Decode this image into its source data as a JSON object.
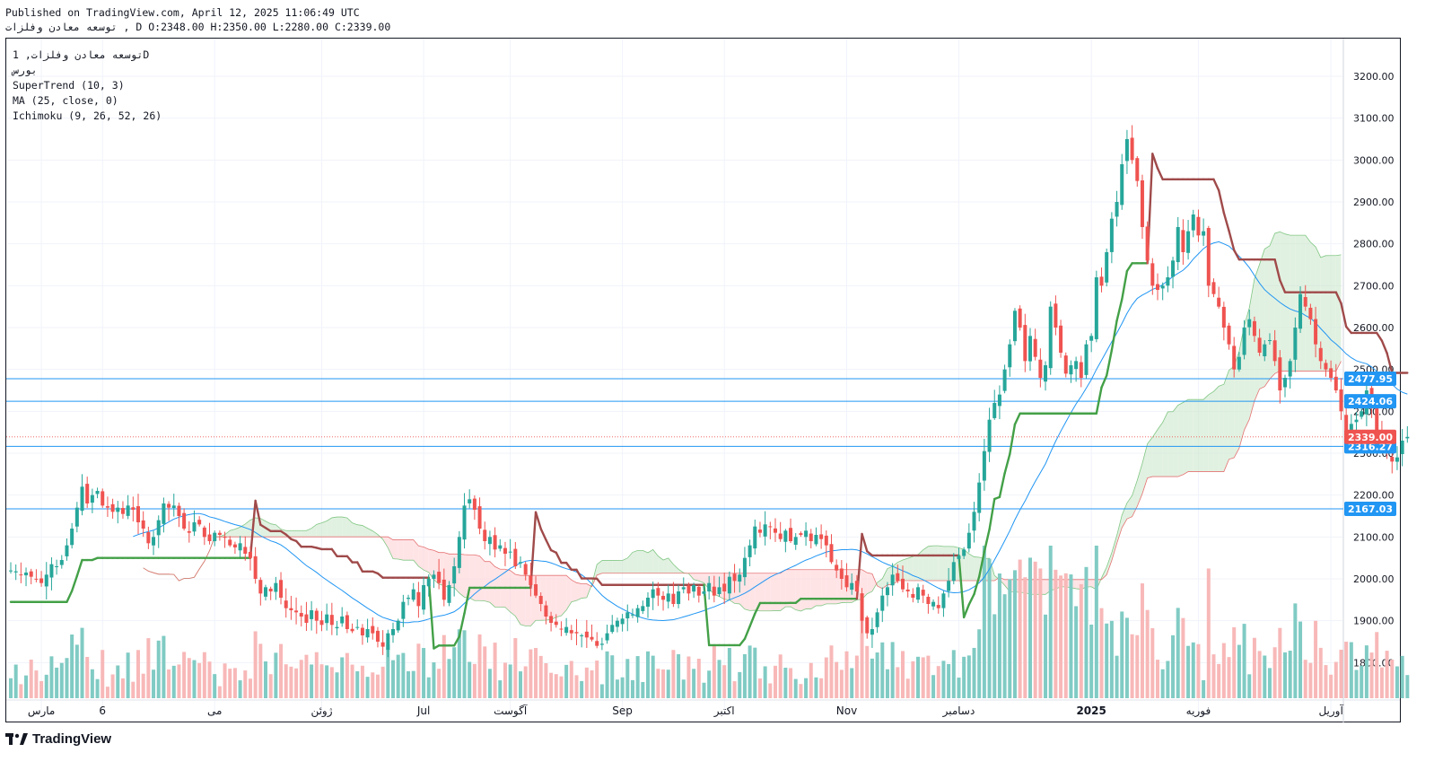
{
  "header": {
    "published": "Published on TradingView.com, April 12, 2025 11:06:49 UTC",
    "ohlc_line": "توسعه معادن وفلزات , D O:2348.00 H:2350.00 L:2280.00 C:2339.00"
  },
  "legend": {
    "symbol": "توسعه معادن وفلزات, 1D",
    "exchange": "بورس",
    "indicator_1": "SuperTrend (10, 3)",
    "indicator_2": "MA (25, close, 0)",
    "indicator_3": "Ichimoku (9, 26, 52, 26)"
  },
  "logo": {
    "text": "TradingView",
    "icon": "tradingview-logo-icon"
  },
  "colors": {
    "up": "#26a69a",
    "down": "#ef5350",
    "supertrend_up": "#43a047",
    "supertrend_down": "#a04a4a",
    "ma": "#2196f3",
    "hline": "#2196f3",
    "cloud_bull": "#c8e6c9",
    "cloud_bear": "#ffcdd2"
  },
  "chart_data": {
    "type": "candlestick",
    "title": "توسعه معادن وفلزات, 1D",
    "ylim": [
      1715,
      3290
    ],
    "y_ticks": [
      1800,
      1900,
      2000,
      2100,
      2200,
      2300,
      2400,
      2500,
      2600,
      2700,
      2800,
      2900,
      3000,
      3100,
      3200
    ],
    "x_labels": [
      {
        "label": "مارس",
        "bar": 6
      },
      {
        "label": "6",
        "bar": 18
      },
      {
        "label": "می",
        "bar": 40
      },
      {
        "label": "ژوئن",
        "bar": 61
      },
      {
        "label": "Jul",
        "bar": 81
      },
      {
        "label": "آگوست",
        "bar": 98
      },
      {
        "label": "Sep",
        "bar": 120
      },
      {
        "label": "اکتبر",
        "bar": 140
      },
      {
        "label": "Nov",
        "bar": 164
      },
      {
        "label": "دسامبر",
        "bar": 186
      },
      {
        "label": "2025",
        "bar": 212
      },
      {
        "label": "فوریه",
        "bar": 233
      },
      {
        "label": "آوریل",
        "bar": 259
      }
    ],
    "price_levels": [
      {
        "value": 2477.95,
        "label": "2477.95"
      },
      {
        "value": 2424.06,
        "label": "2424.06"
      },
      {
        "value": 2316.27,
        "label": "2316.27"
      },
      {
        "value": 2167.03,
        "label": "2167.03"
      }
    ],
    "last_price": {
      "value": 2339.0,
      "label": "2339.00"
    },
    "close": [
      2020,
      2018,
      2010,
      2015,
      2005,
      2000,
      1990,
      2010,
      2035,
      2030,
      2045,
      2080,
      2120,
      2170,
      2220,
      2180,
      2200,
      2210,
      2175,
      2170,
      2160,
      2170,
      2155,
      2175,
      2165,
      2135,
      2120,
      2085,
      2100,
      2140,
      2180,
      2170,
      2175,
      2150,
      2120,
      2110,
      2135,
      2130,
      2100,
      2090,
      2110,
      2105,
      2100,
      2080,
      2075,
      2085,
      2060,
      2050,
      2000,
      1965,
      1980,
      1970,
      1990,
      1955,
      1930,
      1925,
      1920,
      1910,
      1895,
      1925,
      1900,
      1890,
      1915,
      1890,
      1885,
      1910,
      1880,
      1875,
      1885,
      1865,
      1880,
      1870,
      1850,
      1838,
      1870,
      1880,
      1900,
      1945,
      1955,
      1975,
      1935,
      1985,
      2000,
      2010,
      1990,
      1950,
      1985,
      2030,
      2100,
      2175,
      2190,
      2165,
      2120,
      2090,
      2100,
      2070,
      2080,
      2060,
      2065,
      2030,
      2040,
      2010,
      1985,
      1960,
      1940,
      1910,
      1895,
      1890,
      1880,
      1885,
      1870,
      1870,
      1865,
      1860,
      1855,
      1840,
      1845,
      1870,
      1890,
      1900,
      1905,
      1920,
      1915,
      1930,
      1935,
      1955,
      1975,
      1960,
      1950,
      1965,
      1940,
      1970,
      1980,
      1965,
      1985,
      1960,
      1970,
      1990,
      1960,
      1980,
      1970,
      2005,
      1995,
      2010,
      2050,
      2080,
      2125,
      2110,
      2130,
      2125,
      2110,
      2095,
      2115,
      2090,
      2100,
      2105,
      2115,
      2090,
      2105,
      2095,
      2080,
      2040,
      2020,
      2000,
      1980,
      1990,
      1970,
      1900,
      1870,
      1880,
      1920,
      1960,
      1980,
      2010,
      1995,
      1975,
      1970,
      1955,
      1980,
      1960,
      1940,
      1945,
      1930,
      1965,
      1995,
      2040,
      2055,
      2070,
      2110,
      2160,
      2230,
      2305,
      2380,
      2420,
      2440,
      2500,
      2560,
      2640,
      2600,
      2520,
      2580,
      2530,
      2480,
      2510,
      2650,
      2600,
      2540,
      2490,
      2510,
      2520,
      2480,
      2560,
      2580,
      2720,
      2700,
      2780,
      2860,
      2900,
      2990,
      3050,
      3000,
      2950,
      2840,
      2760,
      2700,
      2690,
      2700,
      2720,
      2760,
      2840,
      2780,
      2830,
      2870,
      2820,
      2830,
      2700,
      2680,
      2650,
      2600,
      2560,
      2500,
      2530,
      2600,
      2620,
      2580,
      2540,
      2560,
      2570,
      2520,
      2450,
      2480,
      2520,
      2600,
      2680,
      2650,
      2620,
      2560,
      2520,
      2500,
      2480,
      2450,
      2400,
      2340,
      2370,
      2380,
      2400,
      2450,
      2410,
      2350,
      2330,
      2300,
      2280,
      2290,
      2330,
      2339
    ],
    "ma_period": 25,
    "supertrend": {
      "period": 10,
      "multiplier": 3
    },
    "ichimoku": {
      "conversion": 9,
      "base": 26,
      "span_b": 52,
      "displacement": 26
    }
  }
}
